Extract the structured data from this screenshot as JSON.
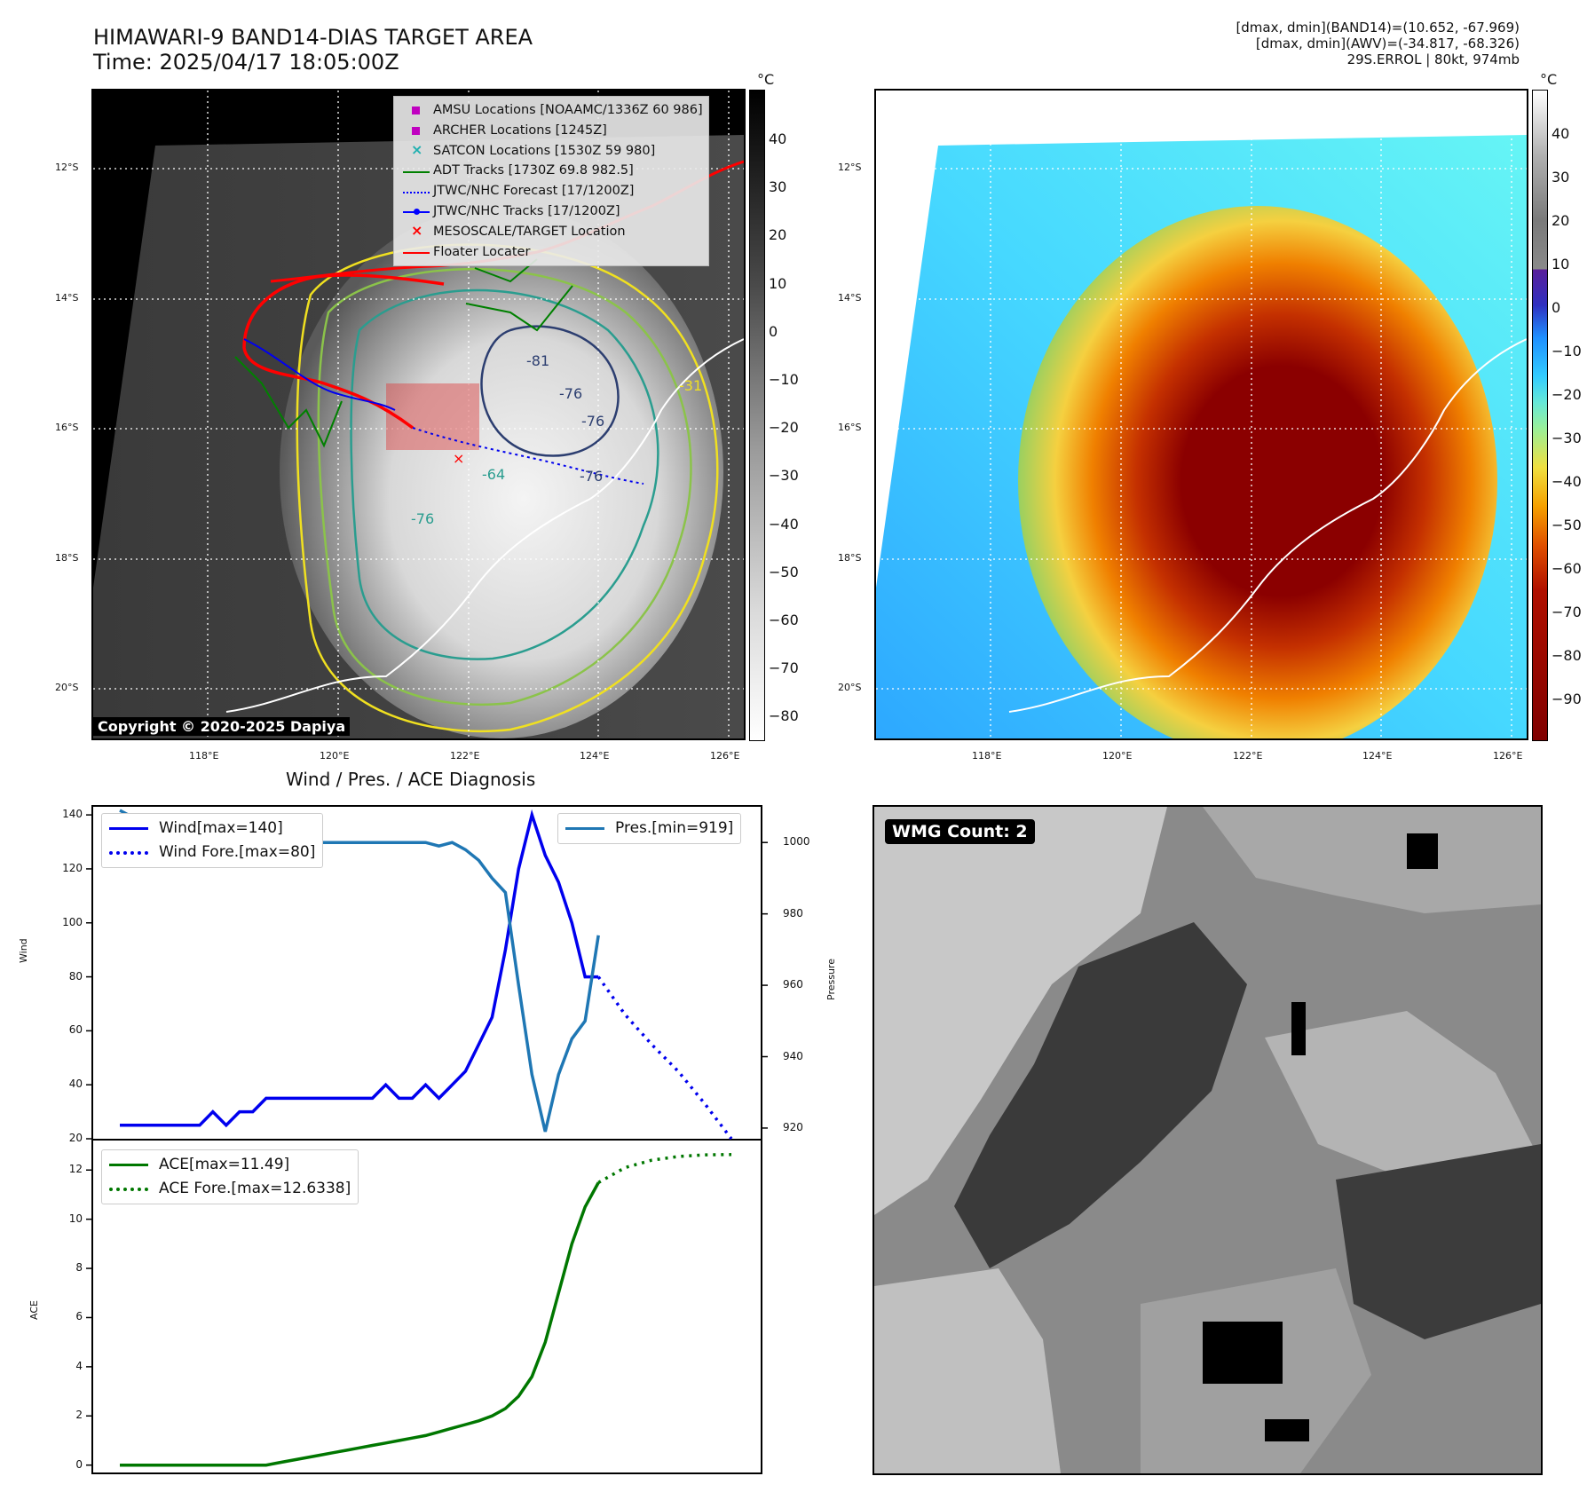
{
  "header": {
    "title_line1": "HIMAWARI-9 BAND14-DIAS TARGET AREA",
    "title_line2": "Time: 2025/04/17 18:05:00Z",
    "info_line1": "[dmax, dmin](BAND14)=(10.652, -67.969)",
    "info_line2": "[dmax, dmin](AWV)=(-34.817, -68.326)",
    "info_line3": "29S.ERROL | 80kt, 974mb"
  },
  "map": {
    "lat_labels": [
      "12°S",
      "14°S",
      "16°S",
      "18°S",
      "20°S"
    ],
    "lon_labels": [
      "118°E",
      "120°E",
      "122°E",
      "124°E",
      "126°E"
    ],
    "contour_labels": [
      "-81",
      "-76",
      "-76",
      "-76",
      "-64",
      "-76",
      "-31"
    ],
    "copyright": "Copyright © 2020-2025 Dapiya"
  },
  "colorbar_gray": {
    "unit": "°C",
    "ticks": [
      "40",
      "30",
      "20",
      "10",
      "0",
      "−10",
      "−20",
      "−30",
      "−40",
      "−50",
      "−60",
      "−70",
      "−80"
    ]
  },
  "colorbar_color": {
    "unit": "°C",
    "ticks": [
      "40",
      "30",
      "20",
      "10",
      "0",
      "−10",
      "−20",
      "−30",
      "−40",
      "−50",
      "−60",
      "−70",
      "−80",
      "−90"
    ]
  },
  "map_legend": {
    "items": [
      {
        "label": "AMSU Locations [NOAAMC/1336Z 60 986]",
        "color": "#c000c0",
        "kind": "square"
      },
      {
        "label": "ARCHER Locations [1245Z]",
        "color": "#c000c0",
        "kind": "square"
      },
      {
        "label": "SATCON Locations [1530Z 59 980]",
        "color": "#20b0b0",
        "kind": "x"
      },
      {
        "label": "ADT Tracks [1730Z 69.8 982.5]",
        "color": "#008000",
        "kind": "line"
      },
      {
        "label": "JTWC/NHC Forecast [17/1200Z]",
        "color": "#0000ff",
        "kind": "dotted"
      },
      {
        "label": "JTWC/NHC Tracks [17/1200Z]",
        "color": "#0000ff",
        "kind": "linedot"
      },
      {
        "label": "MESOSCALE/TARGET Location",
        "color": "#ff0000",
        "kind": "x"
      },
      {
        "label": "Floater Locater",
        "color": "#ff0000",
        "kind": "line"
      }
    ]
  },
  "diagnosis": {
    "title": "Wind / Pres. / ACE Diagnosis",
    "wind_ylabel": "Wind",
    "pres_ylabel": "Pressure",
    "ace_ylabel": "ACE",
    "legend_wind": "Wind[max=140]",
    "legend_wind_fore": "Wind Fore.[max=80]",
    "legend_pres": "Pres.[min=919]",
    "legend_ace": "ACE[max=11.49]",
    "legend_ace_fore": "ACE Fore.[max=12.6338]",
    "wind_ticks": [
      "140",
      "120",
      "100",
      "80",
      "60",
      "40",
      "20"
    ],
    "pres_ticks": [
      "1000",
      "980",
      "960",
      "940",
      "920"
    ],
    "ace_ticks": [
      "12",
      "10",
      "8",
      "6",
      "4",
      "2",
      "0"
    ]
  },
  "wmg": {
    "label": "WMG Count: 2"
  },
  "chart_data": [
    {
      "type": "line",
      "series": [
        {
          "name": "Wind[max=140]",
          "color": "#0000ee",
          "style": "solid",
          "x": [
            0,
            1,
            2,
            3,
            4,
            5,
            6,
            7,
            8,
            9,
            10,
            11,
            12,
            13,
            14,
            15,
            16,
            17,
            18,
            19,
            20,
            21,
            22,
            23,
            24,
            25,
            26,
            27,
            28,
            29,
            30,
            31,
            32,
            33,
            34,
            35,
            36
          ],
          "values": [
            25,
            25,
            25,
            25,
            25,
            25,
            25,
            30,
            25,
            30,
            30,
            35,
            35,
            35,
            35,
            35,
            35,
            35,
            35,
            35,
            40,
            35,
            35,
            40,
            35,
            40,
            45,
            55,
            65,
            90,
            120,
            140,
            125,
            115,
            100,
            80,
            80
          ]
        },
        {
          "name": "Wind Fore.[max=80]",
          "color": "#0000ee",
          "style": "dotted",
          "x": [
            36,
            38,
            40,
            42,
            44,
            46
          ],
          "values": [
            80,
            66,
            55,
            45,
            33,
            20
          ]
        }
      ],
      "ylim": [
        20,
        143
      ]
    },
    {
      "type": "line",
      "series": [
        {
          "name": "Pres.[min=919]",
          "color": "#1f77b4",
          "style": "solid",
          "x": [
            0,
            1,
            2,
            3,
            4,
            5,
            6,
            7,
            8,
            9,
            10,
            11,
            12,
            13,
            14,
            15,
            16,
            17,
            18,
            19,
            20,
            21,
            22,
            23,
            24,
            25,
            26,
            27,
            28,
            29,
            30,
            31,
            32,
            33,
            34,
            35,
            36
          ],
          "values": [
            1009,
            1007,
            1007,
            1005,
            1002,
            1001,
            1001,
            1000,
            1000,
            1000,
            1000,
            1000,
            1000,
            1000,
            1000,
            1000,
            1000,
            1000,
            1000,
            1000,
            1000,
            1000,
            1000,
            1000,
            999,
            1000,
            998,
            995,
            990,
            986,
            960,
            935,
            919,
            935,
            945,
            950,
            974
          ]
        }
      ],
      "ylim": [
        917,
        1010
      ]
    },
    {
      "type": "line",
      "series": [
        {
          "name": "ACE[max=11.49]",
          "color": "#007700",
          "style": "solid",
          "x": [
            0,
            1,
            2,
            3,
            4,
            5,
            6,
            7,
            8,
            9,
            10,
            11,
            12,
            13,
            14,
            15,
            16,
            17,
            18,
            19,
            20,
            21,
            22,
            23,
            24,
            25,
            26,
            27,
            28,
            29,
            30,
            31,
            32,
            33,
            34,
            35,
            36
          ],
          "values": [
            0,
            0,
            0,
            0,
            0,
            0,
            0,
            0,
            0,
            0,
            0,
            0,
            0.1,
            0.2,
            0.3,
            0.4,
            0.5,
            0.6,
            0.7,
            0.8,
            0.9,
            1.0,
            1.1,
            1.2,
            1.35,
            1.5,
            1.65,
            1.8,
            2.0,
            2.3,
            2.8,
            3.6,
            5.0,
            7.0,
            9.0,
            10.5,
            11.49
          ]
        },
        {
          "name": "ACE Fore.[max=12.6338]",
          "color": "#007700",
          "style": "dotted",
          "x": [
            36,
            38,
            40,
            42,
            44,
            46
          ],
          "values": [
            11.49,
            12.1,
            12.4,
            12.55,
            12.62,
            12.63
          ]
        }
      ],
      "ylim": [
        -0.3,
        13.2
      ]
    }
  ]
}
